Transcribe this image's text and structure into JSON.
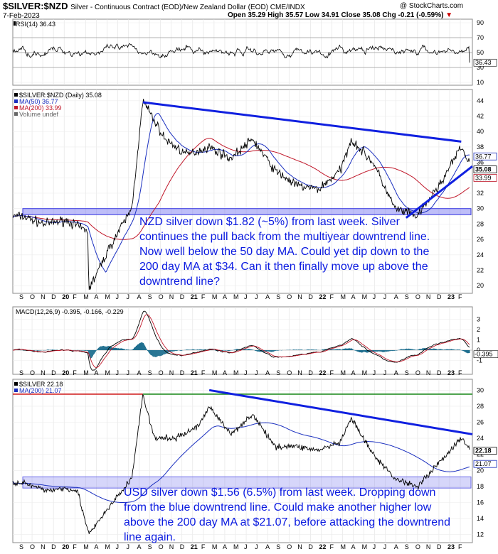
{
  "header": {
    "symbol": "$SILVER:$NZD",
    "description": "Silver - Continuous Contract (EOD)/New Zealand Dollar (EOD) CME/INDX",
    "watermark": "@ StockCharts.com",
    "date": "7-Feb-2023",
    "ohlc": "Open 35.29  High 35.57  Low 34.91  Close 35.08  Chg -0.21 (-0.59%)",
    "chg_marker": "▼"
  },
  "rsi": {
    "label": "RSI(14) 36.43",
    "ticks": [
      "90",
      "70",
      "50",
      "30",
      "10"
    ],
    "value_label": "36.43"
  },
  "nzd": {
    "legend": [
      "$SILVER:$NZD (Daily) 35.08",
      "MA(50) 36.77",
      "MA(200) 33.99",
      "Volume undef"
    ],
    "ticks": [
      "44",
      "42",
      "40",
      "38",
      "36",
      "34",
      "32",
      "30",
      "28",
      "26",
      "24",
      "22",
      "20"
    ],
    "value_labels": [
      "36.77",
      "35.08",
      "33.99"
    ],
    "annotation": "NZD silver down $1.82 (~5%) from last week. Silver continues the pull back from the multiyear downtrend line. Now well below the 50 day MA. Could yet dip down to the 200 day MA at $34. Can it then finally move up above the downtrend line?"
  },
  "macd": {
    "label": "MACD(12,26,9) -0.395, -0.166, -0.229",
    "ticks": [
      "3",
      "2",
      "1",
      "0",
      "-1"
    ],
    "value_label": "-0.395"
  },
  "usd": {
    "legend": [
      "$SILVER 22.18",
      "MA(200) 21.07"
    ],
    "ticks": [
      "30",
      "28",
      "26",
      "24",
      "22",
      "20",
      "18",
      "16",
      "14",
      "12"
    ],
    "value_labels": [
      "22.18",
      "21.07"
    ],
    "annotation": "USD silver down $1.56 (6.5%) from last week. Dropping down from the blue downtrend line. Could make another higher low above the 200 day MA at $21.07, before attacking the downtrend line again."
  },
  "x_axis": [
    "S",
    "O",
    "N",
    "D",
    "20",
    "F",
    "M",
    "A",
    "M",
    "J",
    "J",
    "A",
    "S",
    "O",
    "N",
    "D",
    "21",
    "F",
    "M",
    "A",
    "M",
    "J",
    "J",
    "A",
    "S",
    "O",
    "N",
    "D",
    "22",
    "F",
    "M",
    "A",
    "M",
    "J",
    "J",
    "A",
    "S",
    "O",
    "N",
    "D",
    "23",
    "F"
  ],
  "colors": {
    "price": "#000000",
    "ma50": "#1a2fbf",
    "ma200": "#c0182a",
    "trendline": "#1020e0",
    "support_band": "rgba(110,110,240,0.45)",
    "macd_hist": "#1f6f8f",
    "green_line": "#1d8a1d"
  },
  "chart_data": [
    {
      "type": "line",
      "title": "RSI(14) 36.43",
      "ylim": [
        10,
        90
      ],
      "reference_lines": [
        70,
        50,
        30
      ],
      "last_value": 36.43
    },
    {
      "type": "line",
      "title": "$SILVER:$NZD (Daily) 35.08",
      "ylim": [
        19,
        45
      ],
      "x_range": [
        "2019-09",
        "2023-02"
      ],
      "series": [
        {
          "name": "$SILVER:$NZD (Daily)",
          "last": 35.08,
          "x": [
            "2019-09",
            "2019-11",
            "2020-01",
            "2020-03",
            "2020-03-18",
            "2020-05",
            "2020-07",
            "2020-08",
            "2020-10",
            "2020-12",
            "2021-02",
            "2021-04",
            "2021-06",
            "2021-08",
            "2021-10",
            "2021-12",
            "2022-02",
            "2022-03",
            "2022-05",
            "2022-07",
            "2022-09",
            "2022-11",
            "2023-01",
            "2023-02"
          ],
          "values": [
            29,
            28,
            28.5,
            27,
            19.5,
            25,
            30,
            44,
            39,
            37,
            38,
            36.5,
            39,
            35,
            33,
            32.5,
            35,
            39,
            36,
            30,
            29,
            33,
            38,
            35.08
          ]
        },
        {
          "name": "MA(50)",
          "last": 36.77
        },
        {
          "name": "MA(200)",
          "last": 33.99
        }
      ],
      "trendlines": [
        {
          "from": [
            "2020-08",
            43.8
          ],
          "to": [
            "2023-01",
            38.7
          ]
        },
        {
          "from": [
            "2022-08",
            28.8
          ],
          "to": [
            "2023-02",
            35.5
          ]
        }
      ],
      "support_band": [
        29.2,
        30.0
      ]
    },
    {
      "type": "line",
      "title": "MACD(12,26,9) -0.395, -0.166, -0.229",
      "ylim": [
        -1.5,
        3.5
      ],
      "values": {
        "macd": -0.395,
        "signal": -0.166,
        "histogram": -0.229
      }
    },
    {
      "type": "line",
      "title": "$SILVER 22.18",
      "ylim": [
        11,
        31
      ],
      "series": [
        {
          "name": "$SILVER",
          "last": 22.18,
          "x": [
            "2019-09",
            "2019-11",
            "2020-01",
            "2020-02",
            "2020-03-18",
            "2020-05",
            "2020-07",
            "2020-08",
            "2020-09",
            "2020-11",
            "2021-01",
            "2021-02",
            "2021-04",
            "2021-06",
            "2021-08",
            "2021-10",
            "2021-12",
            "2022-02",
            "2022-03",
            "2022-05",
            "2022-07",
            "2022-09",
            "2022-11",
            "2023-01",
            "2023-02"
          ],
          "values": [
            18.5,
            17.5,
            17.8,
            17.5,
            12,
            15.5,
            19,
            29.5,
            24,
            24,
            25.5,
            28,
            24.5,
            27,
            23,
            23,
            22.5,
            23.5,
            26.5,
            22,
            19,
            18,
            21,
            24,
            22.18
          ]
        },
        {
          "name": "MA(200)",
          "last": 21.07
        }
      ],
      "horizontal_line": 29.5,
      "trendline": {
        "from": [
          "2021-02",
          30
        ],
        "to": [
          "2023-02",
          24.5
        ]
      },
      "support_band": [
        17.8,
        19.2
      ]
    }
  ]
}
